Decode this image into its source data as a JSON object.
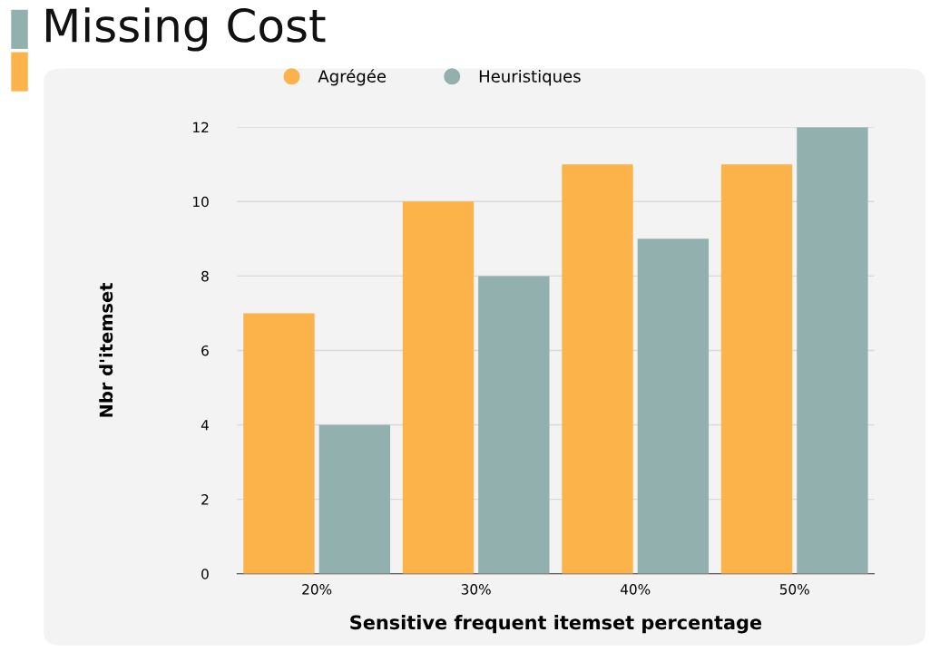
{
  "chart_data": {
    "type": "bar",
    "title": "Missing Cost",
    "xlabel": "Sensitive frequent itemset percentage",
    "ylabel": "Nbr d'itemset",
    "categories": [
      "20%",
      "30%",
      "40%",
      "50%"
    ],
    "series": [
      {
        "name": "Agrégée",
        "color": "#fbb34a",
        "values": [
          7,
          10,
          11,
          11
        ]
      },
      {
        "name": "Heuristiques",
        "color": "#92b0ad",
        "values": [
          4,
          8,
          9,
          12
        ]
      }
    ],
    "ylim": [
      0,
      12
    ],
    "yticks": [
      0,
      2,
      4,
      6,
      8,
      10,
      12
    ],
    "grid": "y",
    "legend": "top"
  }
}
